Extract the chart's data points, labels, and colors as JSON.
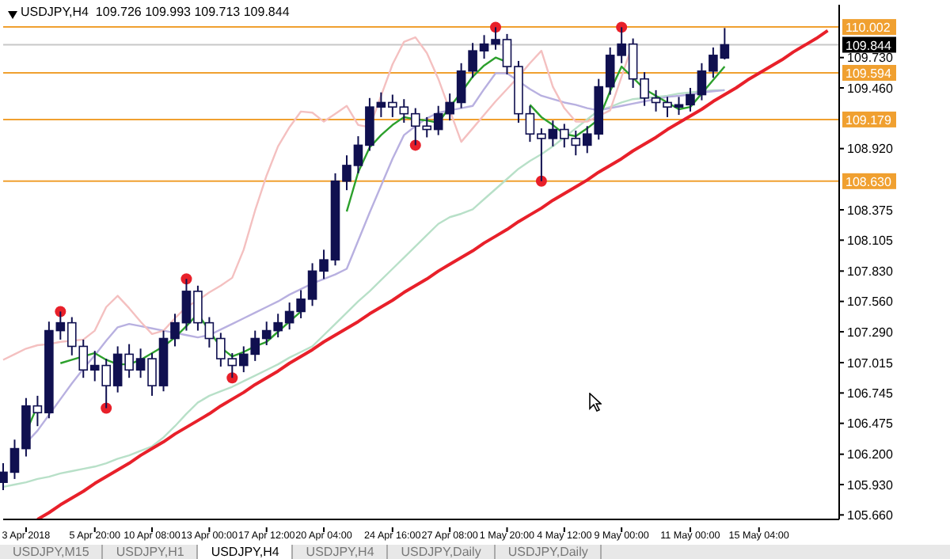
{
  "chart_data": {
    "type": "candlestick",
    "title": "USDJPY,H4  109.726 109.993 109.713 109.844",
    "categories": [
      null,
      null,
      "3 Apr 2018",
      null,
      null,
      null,
      null,
      null,
      "5 Apr 20:00",
      null,
      null,
      null,
      null,
      "10 Apr 08:00",
      null,
      null,
      null,
      null,
      "13 Apr 00:00",
      null,
      null,
      null,
      null,
      "17 Apr 12:00",
      null,
      null,
      null,
      null,
      "20 Apr 04:00",
      null,
      null,
      null,
      null,
      null,
      "24 Apr 16:00",
      null,
      null,
      null,
      null,
      "27 Apr 08:00",
      null,
      null,
      null,
      null,
      "1 May 20:00",
      null,
      null,
      null,
      null,
      "4 May 12:00",
      null,
      null,
      null,
      null,
      "9 May 00:00",
      null,
      null,
      null,
      null,
      null,
      "11 May 00:00",
      null,
      null,
      null,
      null,
      null,
      "15 May 04:00",
      null,
      null,
      null,
      null,
      null,
      null,
      null
    ],
    "ylim": [
      105.62,
      110.2
    ],
    "yticks": [
      {
        "value": 105.66,
        "label": "105.660"
      },
      {
        "value": 105.93,
        "label": "105.930"
      },
      {
        "value": 106.2,
        "label": "106.200"
      },
      {
        "value": 106.475,
        "label": "106.475"
      },
      {
        "value": 106.745,
        "label": "106.745"
      },
      {
        "value": 107.015,
        "label": "107.015"
      },
      {
        "value": 107.29,
        "label": "107.290"
      },
      {
        "value": 107.56,
        "label": "107.560"
      },
      {
        "value": 107.83,
        "label": "107.830"
      },
      {
        "value": 108.105,
        "label": "108.105"
      },
      {
        "value": 108.375,
        "label": "108.375"
      },
      {
        "value": 108.92,
        "label": "108.920"
      },
      {
        "value": 109.46,
        "label": "109.460"
      },
      {
        "value": 109.73,
        "label": "109.730"
      }
    ],
    "series": [
      {
        "type": "line",
        "color": "#b8e0c8",
        "values": [
          105.91,
          105.93,
          105.95,
          105.98,
          106.0,
          106.03,
          106.05,
          106.07,
          106.09,
          106.12,
          106.16,
          106.19,
          106.23,
          106.27,
          106.35,
          106.45,
          106.56,
          106.66,
          106.72,
          106.76,
          106.8,
          106.85,
          106.9,
          106.95,
          107.0,
          107.06,
          107.11,
          107.16,
          107.26,
          107.36,
          107.46,
          107.56,
          107.65,
          107.75,
          107.85,
          107.95,
          108.05,
          108.15,
          108.25,
          108.31,
          108.34,
          108.38,
          108.47,
          108.56,
          108.65,
          108.74,
          108.81,
          108.87,
          108.94,
          109.02,
          109.1,
          109.18,
          109.26,
          109.29,
          109.33,
          109.36,
          109.37,
          109.38,
          109.39,
          109.41,
          109.42,
          109.43,
          109.44,
          109.44,
          null,
          null,
          null,
          null,
          null,
          null,
          null,
          null,
          null,
          null
        ]
      },
      {
        "type": "line",
        "color": "#b8b0e0",
        "values": [
          null,
          null,
          106.3,
          106.41,
          106.55,
          106.69,
          106.83,
          106.96,
          107.08,
          107.21,
          107.33,
          107.36,
          107.34,
          107.32,
          107.3,
          107.28,
          107.26,
          107.24,
          107.26,
          107.31,
          107.36,
          107.41,
          107.46,
          107.51,
          107.56,
          107.62,
          107.67,
          107.72,
          107.76,
          107.8,
          107.85,
          108.1,
          108.35,
          108.59,
          108.83,
          109.04,
          109.12,
          109.19,
          109.24,
          109.26,
          109.28,
          109.3,
          109.45,
          109.59,
          109.59,
          109.52,
          109.45,
          109.39,
          109.36,
          109.33,
          109.31,
          109.28,
          109.26,
          109.28,
          109.3,
          109.32,
          109.34,
          109.36,
          109.38,
          109.39,
          109.4,
          109.42,
          109.43,
          109.44,
          null,
          null,
          null,
          null,
          null,
          null,
          null,
          null,
          null,
          null
        ]
      },
      {
        "type": "line",
        "color": "#f4c0c0",
        "values": [
          107.04,
          107.09,
          107.14,
          107.17,
          107.18,
          107.2,
          107.21,
          107.22,
          107.3,
          107.51,
          107.61,
          107.5,
          107.38,
          107.27,
          107.3,
          107.41,
          107.51,
          107.57,
          107.64,
          107.7,
          107.77,
          108.02,
          108.37,
          108.68,
          108.94,
          109.11,
          109.25,
          109.24,
          109.16,
          109.23,
          109.3,
          109.13,
          109.11,
          109.39,
          109.67,
          109.87,
          109.91,
          109.77,
          109.54,
          109.26,
          108.98,
          109.1,
          109.22,
          109.34,
          109.45,
          109.56,
          109.68,
          109.79,
          109.47,
          109.28,
          109.16,
          109.16,
          109.21,
          109.26,
          109.56,
          109.86,
          null,
          null,
          null,
          null,
          null,
          null,
          null,
          null,
          null,
          null,
          null,
          null,
          null,
          null,
          null,
          null,
          null,
          null
        ]
      },
      {
        "type": "line",
        "color": "#2ca02c",
        "values": [
          null,
          null,
          106.4,
          106.63,
          null,
          107.01,
          107.04,
          107.07,
          107.1,
          107.04,
          107.0,
          107.0,
          107.04,
          107.1,
          107.16,
          107.24,
          107.34,
          107.45,
          107.3,
          107.15,
          107.07,
          107.11,
          107.16,
          107.2,
          107.29,
          107.38,
          107.47,
          null,
          null,
          null,
          108.36,
          108.71,
          108.93,
          109.04,
          109.13,
          109.2,
          109.18,
          109.17,
          109.15,
          109.29,
          109.42,
          109.56,
          109.66,
          109.73,
          109.69,
          null,
          109.31,
          109.2,
          109.13,
          109.05,
          109.03,
          109.1,
          109.18,
          109.43,
          109.65,
          109.55,
          109.45,
          109.39,
          109.33,
          109.27,
          109.29,
          109.41,
          109.53,
          109.65,
          null,
          null,
          null,
          null,
          null,
          null,
          null,
          null,
          null,
          null
        ]
      },
      {
        "type": "line",
        "color": "#e8202a",
        "values": [
          null,
          null,
          null,
          105.62,
          105.68,
          105.75,
          105.81,
          105.87,
          105.94,
          106.0,
          106.06,
          106.12,
          106.19,
          106.25,
          106.31,
          106.38,
          106.44,
          106.5,
          106.56,
          106.63,
          106.69,
          106.75,
          106.82,
          106.88,
          106.94,
          107.01,
          107.07,
          107.13,
          107.2,
          107.26,
          107.32,
          107.38,
          107.45,
          107.51,
          107.57,
          107.64,
          107.7,
          107.76,
          107.83,
          107.89,
          107.95,
          108.01,
          108.08,
          108.14,
          108.2,
          108.27,
          108.33,
          108.39,
          108.46,
          108.52,
          108.58,
          108.64,
          108.71,
          108.77,
          108.83,
          108.9,
          108.96,
          109.02,
          109.09,
          109.15,
          109.21,
          109.27,
          109.34,
          109.4,
          109.46,
          109.53,
          109.59,
          109.65,
          109.71,
          109.78,
          109.84,
          109.9,
          109.97,
          null
        ]
      },
      {
        "type": "scatter",
        "color": "#e8202a",
        "marker": "circle",
        "values": [
          null,
          null,
          null,
          null,
          null,
          107.47,
          null,
          null,
          null,
          106.61,
          null,
          null,
          null,
          null,
          null,
          null,
          107.76,
          null,
          null,
          null,
          106.88,
          null,
          null,
          null,
          null,
          null,
          null,
          null,
          null,
          null,
          null,
          null,
          null,
          null,
          null,
          null,
          108.95,
          null,
          null,
          null,
          null,
          null,
          null,
          110.0,
          null,
          null,
          null,
          108.63,
          null,
          null,
          null,
          null,
          null,
          null,
          110.0,
          null,
          null,
          null,
          null,
          null,
          null,
          null,
          null,
          null,
          null,
          null,
          null,
          null,
          null,
          null,
          null,
          null,
          null,
          null
        ]
      },
      {
        "color": "#101050",
        "ohlc": [
          [
            105.95,
            106.12,
            105.88,
            106.04
          ],
          [
            106.04,
            106.33,
            105.98,
            106.25
          ],
          [
            106.25,
            106.7,
            106.18,
            106.63
          ],
          [
            106.63,
            106.72,
            106.45,
            106.57
          ],
          [
            106.57,
            107.38,
            106.52,
            107.3
          ],
          [
            107.3,
            107.47,
            107.22,
            107.37
          ],
          [
            107.37,
            107.42,
            107.08,
            107.16
          ],
          [
            107.16,
            107.22,
            106.88,
            106.95
          ],
          [
            106.95,
            107.12,
            106.85,
            106.99
          ],
          [
            106.99,
            107.05,
            106.61,
            106.81
          ],
          [
            106.81,
            107.16,
            106.75,
            107.09
          ],
          [
            107.09,
            107.18,
            106.88,
            106.95
          ],
          [
            106.95,
            107.14,
            106.88,
            107.05
          ],
          [
            107.05,
            107.1,
            106.72,
            106.81
          ],
          [
            106.81,
            107.3,
            106.76,
            107.23
          ],
          [
            107.23,
            107.45,
            107.16,
            107.37
          ],
          [
            107.37,
            107.76,
            107.3,
            107.65
          ],
          [
            107.65,
            107.7,
            107.3,
            107.37
          ],
          [
            107.37,
            107.42,
            107.15,
            107.23
          ],
          [
            107.23,
            107.28,
            106.98,
            107.05
          ],
          [
            107.05,
            107.1,
            106.88,
            106.99
          ],
          [
            106.99,
            107.16,
            106.93,
            107.09
          ],
          [
            107.09,
            107.3,
            107.03,
            107.23
          ],
          [
            107.23,
            107.38,
            107.17,
            107.3
          ],
          [
            107.3,
            107.45,
            107.24,
            107.37
          ],
          [
            107.37,
            107.55,
            107.31,
            107.47
          ],
          [
            107.47,
            107.66,
            107.41,
            107.58
          ],
          [
            107.58,
            107.9,
            107.52,
            107.83
          ],
          [
            107.83,
            108.02,
            107.76,
            107.93
          ],
          [
            107.93,
            108.7,
            107.88,
            108.63
          ],
          [
            108.63,
            108.86,
            108.55,
            108.77
          ],
          [
            108.77,
            109.03,
            108.7,
            108.95
          ],
          [
            108.95,
            109.37,
            108.9,
            109.29
          ],
          [
            109.29,
            109.42,
            109.2,
            109.33
          ],
          [
            109.33,
            109.4,
            109.2,
            109.29
          ],
          [
            109.29,
            109.36,
            109.15,
            109.23
          ],
          [
            109.23,
            109.28,
            108.95,
            109.12
          ],
          [
            109.12,
            109.2,
            109.02,
            109.09
          ],
          [
            109.09,
            109.3,
            109.04,
            109.23
          ],
          [
            109.23,
            109.41,
            109.17,
            109.33
          ],
          [
            109.33,
            109.68,
            109.28,
            109.61
          ],
          [
            109.61,
            109.86,
            109.55,
            109.79
          ],
          [
            109.79,
            109.93,
            109.72,
            109.85
          ],
          [
            109.85,
            110.0,
            109.8,
            109.89
          ],
          [
            109.89,
            109.94,
            109.58,
            109.65
          ],
          [
            109.65,
            109.7,
            109.15,
            109.23
          ],
          [
            109.23,
            109.3,
            108.98,
            109.05
          ],
          [
            109.05,
            109.1,
            108.63,
            109.01
          ],
          [
            109.01,
            109.17,
            108.94,
            109.09
          ],
          [
            109.09,
            109.14,
            108.93,
            109.01
          ],
          [
            109.01,
            109.08,
            108.86,
            108.95
          ],
          [
            108.95,
            109.12,
            108.88,
            109.05
          ],
          [
            109.05,
            109.54,
            109.0,
            109.47
          ],
          [
            109.47,
            109.82,
            109.4,
            109.75
          ],
          [
            109.75,
            110.0,
            109.68,
            109.85
          ],
          [
            109.85,
            109.9,
            109.46,
            109.54
          ],
          [
            109.54,
            109.6,
            109.3,
            109.37
          ],
          [
            109.37,
            109.44,
            109.25,
            109.33
          ],
          [
            109.33,
            109.38,
            109.2,
            109.29
          ],
          [
            109.29,
            109.38,
            109.22,
            109.31
          ],
          [
            109.31,
            109.46,
            109.25,
            109.4
          ],
          [
            109.4,
            109.68,
            109.35,
            109.61
          ],
          [
            109.61,
            109.82,
            109.55,
            109.75
          ],
          [
            109.726,
            109.993,
            109.713,
            109.844
          ],
          null,
          null,
          null,
          null,
          null,
          null,
          null,
          null,
          null,
          null
        ]
      }
    ],
    "ref_lines": [
      {
        "axis": "y",
        "value": 110.002,
        "label": "110.002",
        "color": "#f0a030"
      },
      {
        "axis": "y",
        "value": 109.594,
        "label": "109.594",
        "color": "#f0a030"
      },
      {
        "axis": "y",
        "value": 109.179,
        "label": "109.179",
        "color": "#f0a030"
      },
      {
        "axis": "y",
        "value": 108.63,
        "label": "108.630",
        "color": "#f0a030"
      },
      {
        "axis": "y",
        "value": 109.844,
        "label": "109.844",
        "color": "#c8c8c8"
      }
    ],
    "annotations": [
      "USDJPY,M15",
      "USDJPY,H1",
      "USDJPY,H4",
      "USDJPY,H4",
      "USDJPY,Daily",
      "USDJPY,Daily"
    ]
  }
}
